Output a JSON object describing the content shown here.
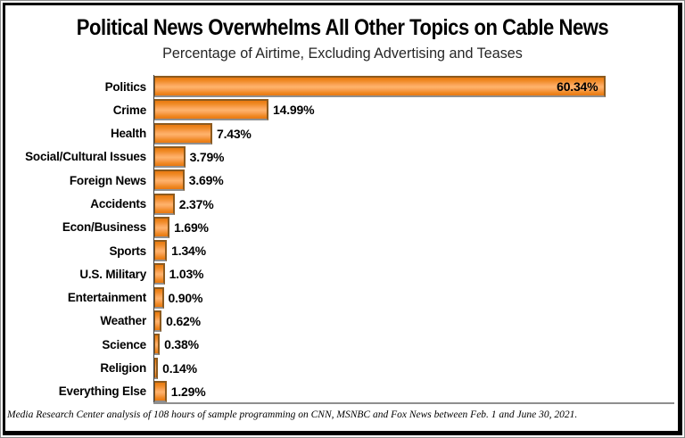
{
  "header": {
    "title": "Political News Overwhelms All Other Topics on Cable News",
    "subtitle": "Percentage of Airtime, Excluding Advertising and Teases"
  },
  "chart_data": {
    "type": "bar",
    "orientation": "horizontal",
    "title": "Political News Overwhelms All Other Topics on Cable News",
    "subtitle": "Percentage of Airtime, Excluding Advertising and Teases",
    "categories": [
      "Politics",
      "Crime",
      "Health",
      "Social/Cultural Issues",
      "Foreign News",
      "Accidents",
      "Econ/Business",
      "Sports",
      "U.S. Military",
      "Entertainment",
      "Weather",
      "Science",
      "Religion",
      "Everything Else"
    ],
    "values": [
      60.34,
      14.99,
      7.43,
      3.79,
      3.69,
      2.37,
      1.69,
      1.34,
      1.03,
      0.9,
      0.62,
      0.38,
      0.14,
      1.29
    ],
    "value_labels": [
      "60.34%",
      "14.99%",
      "7.43%",
      "3.79%",
      "3.69%",
      "2.37%",
      "1.69%",
      "1.34%",
      "1.03%",
      "0.90%",
      "0.62%",
      "0.38%",
      "0.14%",
      "1.29%"
    ],
    "value_label_inside": [
      true,
      false,
      false,
      false,
      false,
      false,
      false,
      false,
      false,
      false,
      false,
      false,
      false,
      false
    ],
    "xlabel": "",
    "ylabel": "",
    "xlim": [
      0,
      70
    ],
    "grid": false,
    "legend": "none",
    "bar_color": "#FB8C2B",
    "bar_gradient": [
      "#E8780F",
      "#FEB46C",
      "#E8780F"
    ],
    "bar_border_color": "#8C5A1E",
    "axis_line_color": "#3A3A3A"
  },
  "footer": {
    "source_note": "Media Research Center analysis of 108 hours of sample programming on CNN, MSNBC and Fox News between Feb. 1 and June 30, 2021."
  }
}
